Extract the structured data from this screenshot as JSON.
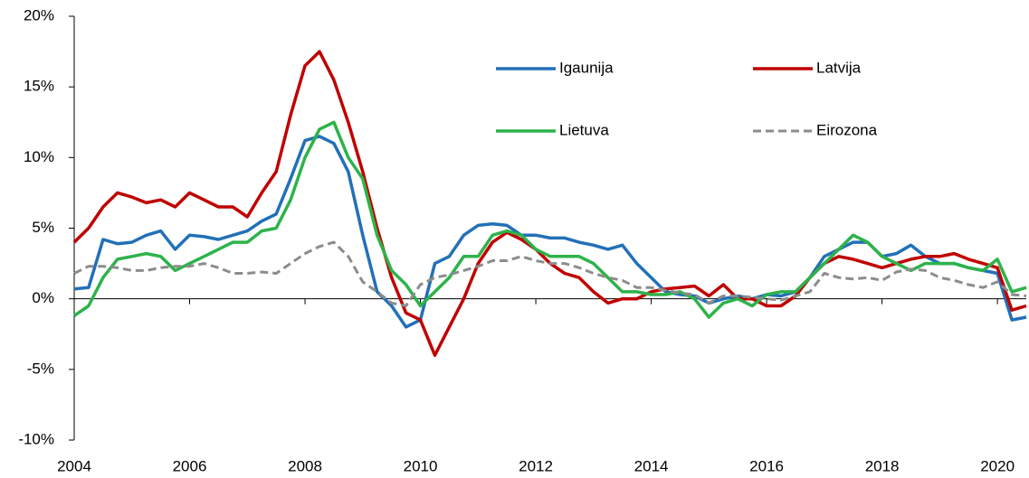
{
  "chart_data": {
    "type": "line",
    "x": [
      2004,
      2004.25,
      2004.5,
      2004.75,
      2005,
      2005.25,
      2005.5,
      2005.75,
      2006,
      2006.25,
      2006.5,
      2006.75,
      2007,
      2007.25,
      2007.5,
      2007.75,
      2008,
      2008.25,
      2008.5,
      2008.75,
      2009,
      2009.25,
      2009.5,
      2009.75,
      2010,
      2010.25,
      2010.5,
      2010.75,
      2011,
      2011.25,
      2011.5,
      2011.75,
      2012,
      2012.25,
      2012.5,
      2012.75,
      2013,
      2013.25,
      2013.5,
      2013.75,
      2014,
      2014.25,
      2014.5,
      2014.75,
      2015,
      2015.25,
      2015.5,
      2015.75,
      2016,
      2016.25,
      2016.5,
      2016.75,
      2017,
      2017.25,
      2017.5,
      2017.75,
      2018,
      2018.25,
      2018.5,
      2018.75,
      2019,
      2019.25,
      2019.5,
      2019.75,
      2020,
      2020.25,
      2020.5
    ],
    "series": [
      {
        "name": "Igaunija",
        "color": "#2270b8",
        "dashed": false,
        "values": [
          0.7,
          0.8,
          4.2,
          3.9,
          4.0,
          4.5,
          4.8,
          3.5,
          4.5,
          4.4,
          4.2,
          4.5,
          4.8,
          5.5,
          6.0,
          8.5,
          11.2,
          11.5,
          11.0,
          9.0,
          4.5,
          0.5,
          -0.5,
          -2.0,
          -1.5,
          2.5,
          3.0,
          4.5,
          5.2,
          5.3,
          5.2,
          4.5,
          4.5,
          4.3,
          4.3,
          4.0,
          3.8,
          3.5,
          3.8,
          2.5,
          1.5,
          0.5,
          0.3,
          0.2,
          -0.3,
          0.0,
          0.2,
          0.0,
          0.3,
          0.2,
          0.5,
          1.5,
          3.0,
          3.5,
          4.0,
          4.0,
          3.0,
          3.2,
          3.8,
          3.0,
          2.5,
          2.5,
          2.2,
          2.0,
          1.8,
          -1.5,
          -1.3
        ]
      },
      {
        "name": "Latvija",
        "color": "#c00000",
        "dashed": false,
        "values": [
          4.0,
          5.0,
          6.5,
          7.5,
          7.2,
          6.8,
          7.0,
          6.5,
          7.5,
          7.0,
          6.5,
          6.5,
          5.8,
          7.5,
          9.0,
          13.0,
          16.5,
          17.5,
          15.5,
          12.5,
          9.0,
          5.0,
          1.5,
          -1.0,
          -1.5,
          -4.0,
          -2.0,
          0.0,
          2.5,
          4.0,
          4.7,
          4.2,
          3.5,
          2.5,
          1.8,
          1.5,
          0.5,
          -0.3,
          0.0,
          0.0,
          0.5,
          0.7,
          0.8,
          0.9,
          0.2,
          1.0,
          0.0,
          0.0,
          -0.5,
          -0.5,
          0.2,
          1.5,
          2.5,
          3.0,
          2.8,
          2.5,
          2.2,
          2.5,
          2.8,
          3.0,
          3.0,
          3.2,
          2.8,
          2.5,
          2.2,
          -0.8,
          -0.5
        ]
      },
      {
        "name": "Lietuva",
        "color": "#2db34a",
        "dashed": false,
        "values": [
          -1.2,
          -0.5,
          1.5,
          2.8,
          3.0,
          3.2,
          3.0,
          2.0,
          2.5,
          3.0,
          3.5,
          4.0,
          4.0,
          4.8,
          5.0,
          7.0,
          10.0,
          12.0,
          12.5,
          10.0,
          8.5,
          4.5,
          2.0,
          1.0,
          -0.5,
          0.5,
          1.5,
          3.0,
          3.0,
          4.5,
          4.8,
          4.5,
          3.5,
          3.0,
          3.0,
          3.0,
          2.5,
          1.5,
          0.5,
          0.5,
          0.3,
          0.3,
          0.5,
          0.0,
          -1.3,
          -0.3,
          0.0,
          -0.5,
          0.3,
          0.5,
          0.5,
          1.5,
          2.5,
          3.5,
          4.5,
          4.0,
          3.0,
          2.5,
          2.0,
          2.5,
          2.5,
          2.5,
          2.2,
          2.0,
          2.8,
          0.5,
          0.8
        ]
      },
      {
        "name": "Eirozona",
        "color": "#8c8c8c",
        "dashed": true,
        "values": [
          1.8,
          2.3,
          2.3,
          2.2,
          2.0,
          2.0,
          2.2,
          2.3,
          2.3,
          2.5,
          2.2,
          1.8,
          1.8,
          1.9,
          1.8,
          2.5,
          3.2,
          3.7,
          4.0,
          3.0,
          1.2,
          0.5,
          -0.3,
          -0.5,
          1.0,
          1.5,
          1.7,
          2.0,
          2.3,
          2.7,
          2.7,
          3.0,
          2.7,
          2.5,
          2.5,
          2.2,
          1.8,
          1.5,
          1.3,
          0.8,
          0.8,
          0.6,
          0.4,
          0.3,
          -0.3,
          0.2,
          0.2,
          0.1,
          0.0,
          -0.1,
          0.2,
          0.5,
          1.8,
          1.5,
          1.4,
          1.5,
          1.3,
          1.9,
          2.1,
          2.0,
          1.5,
          1.3,
          1.0,
          0.8,
          1.2,
          0.3,
          0.2
        ]
      }
    ],
    "xlim": [
      2004,
      2020.5
    ],
    "xticks": [
      2004,
      2006,
      2008,
      2010,
      2012,
      2014,
      2016,
      2018,
      2020
    ],
    "ylim": [
      -10,
      20
    ],
    "yticks": [
      {
        "value": -10,
        "label": "-10%"
      },
      {
        "value": -5,
        "label": "-5%"
      },
      {
        "value": 0,
        "label": "0%"
      },
      {
        "value": 5,
        "label": "5%"
      },
      {
        "value": 10,
        "label": "10%"
      },
      {
        "value": 15,
        "label": "15%"
      },
      {
        "value": 20,
        "label": "20%"
      }
    ],
    "grid": false
  }
}
